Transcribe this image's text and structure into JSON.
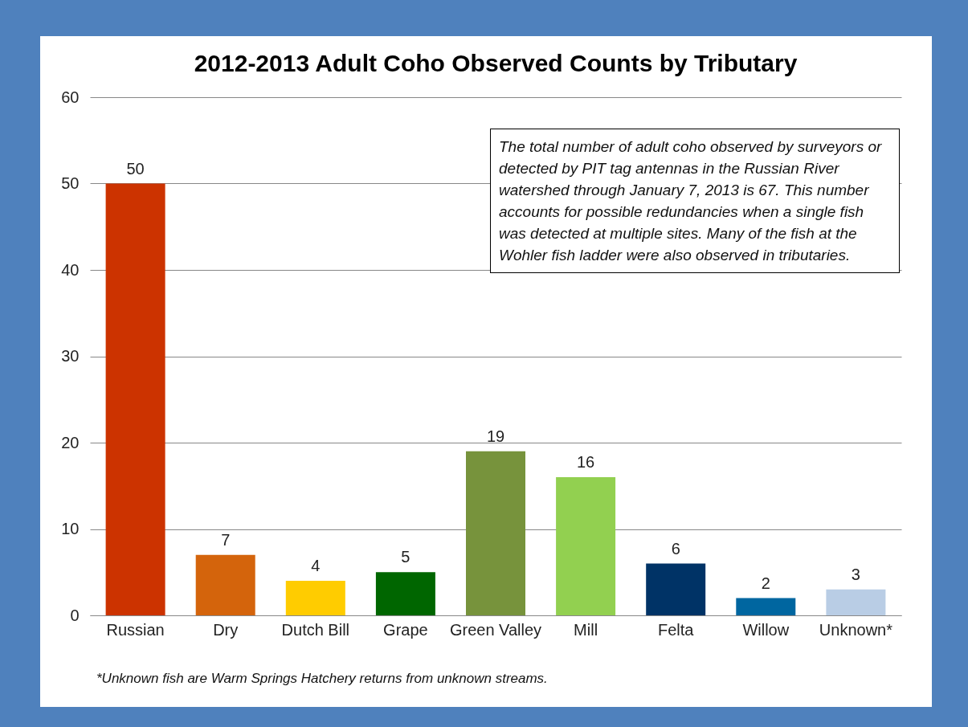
{
  "chart_data": {
    "type": "bar",
    "title": "2012-2013 Adult Coho Observed Counts by Tributary",
    "categories": [
      "Russian",
      "Dry",
      "Dutch Bill",
      "Grape",
      "Green Valley",
      "Mill",
      "Felta",
      "Willow",
      "Unknown*"
    ],
    "values": [
      50,
      7,
      4,
      5,
      19,
      16,
      6,
      2,
      3
    ],
    "colors": [
      "#cc3300",
      "#d4640c",
      "#ffcc00",
      "#006600",
      "#77933c",
      "#92d050",
      "#003366",
      "#0066a0",
      "#b9cde5"
    ],
    "ylim": [
      0,
      60
    ],
    "yticks": [
      0,
      10,
      20,
      30,
      40,
      50,
      60
    ],
    "grid": "y",
    "data_labels": true,
    "annotations": [
      "The total number of adult coho observed by surveyors or detected by PIT tag antennas in the Russian River watershed through January 7, 2013 is 67. This number accounts for possible redundancies when a single fish was detected at multiple sites. Many of the fish at the Wohler fish ladder were also observed in tributaries.",
      "*Unknown fish are Warm Springs Hatchery returns from unknown streams."
    ]
  }
}
